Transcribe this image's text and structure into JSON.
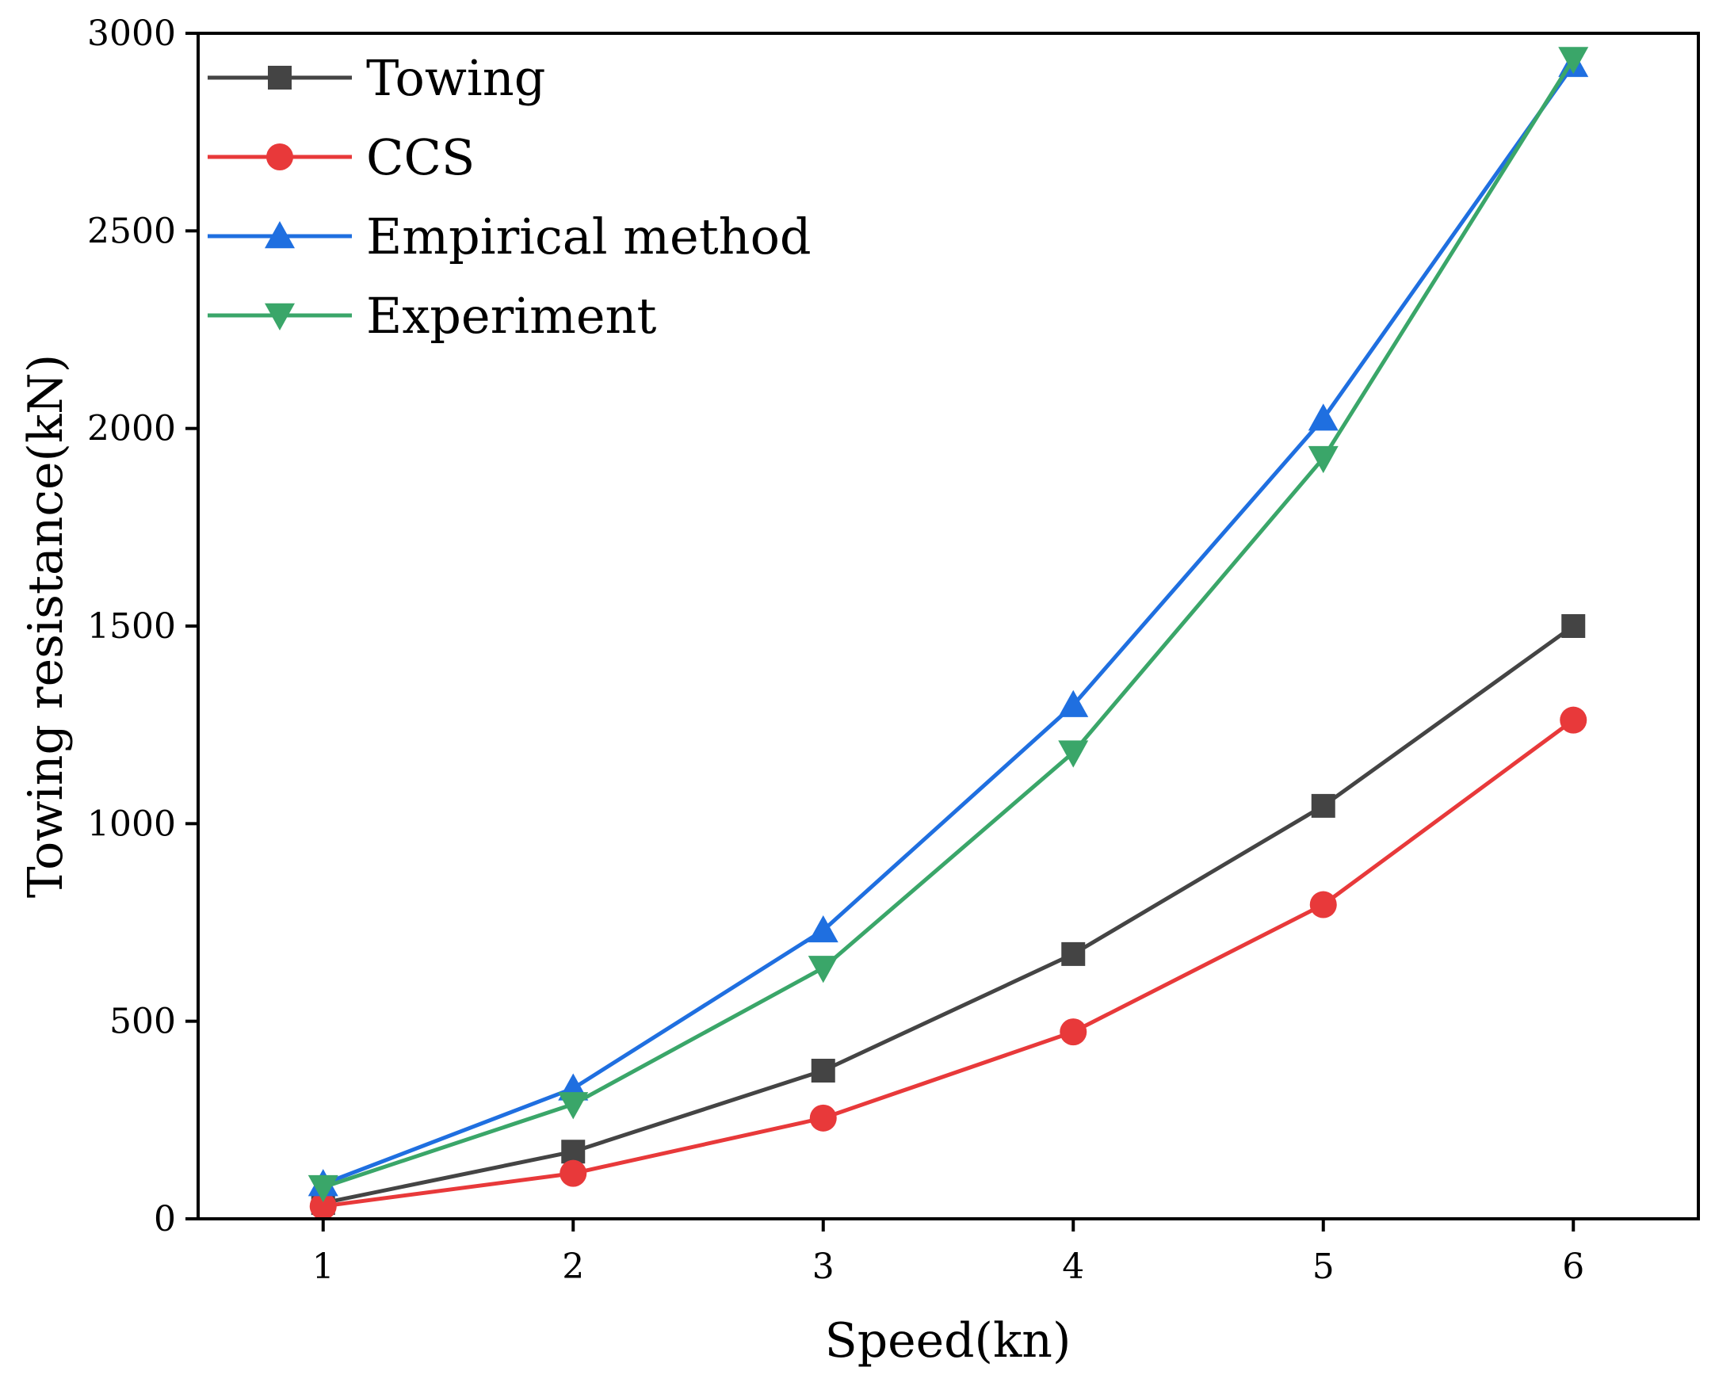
{
  "chart_data": {
    "type": "line",
    "title": "",
    "xlabel": "Speed(kn)",
    "ylabel": "Towing resistance(kN)",
    "x": [
      1,
      2,
      3,
      4,
      5,
      6
    ],
    "xlim": [
      0.5,
      6.5
    ],
    "ylim": [
      0,
      3000
    ],
    "xticks": [
      "1",
      "2",
      "3",
      "4",
      "5",
      "6"
    ],
    "yticks": [
      "0",
      "500",
      "1000",
      "1500",
      "2000",
      "2500",
      "3000"
    ],
    "grid": false,
    "legend_position": "top-left",
    "series": [
      {
        "name": "Towing",
        "marker": "square",
        "color": "#444444",
        "values": [
          40,
          170,
          375,
          670,
          1045,
          1500
        ]
      },
      {
        "name": "CCS",
        "marker": "circle",
        "color": "#e8393a",
        "values": [
          32,
          115,
          255,
          473,
          795,
          1262
        ]
      },
      {
        "name": "Empirical method",
        "marker": "triangle-up",
        "color": "#1f6fe0",
        "values": [
          88,
          330,
          730,
          1300,
          2025,
          2920
        ]
      },
      {
        "name": "Experiment",
        "marker": "triangle-down",
        "color": "#3aa669",
        "values": [
          80,
          290,
          635,
          1180,
          1925,
          2935
        ]
      }
    ]
  }
}
